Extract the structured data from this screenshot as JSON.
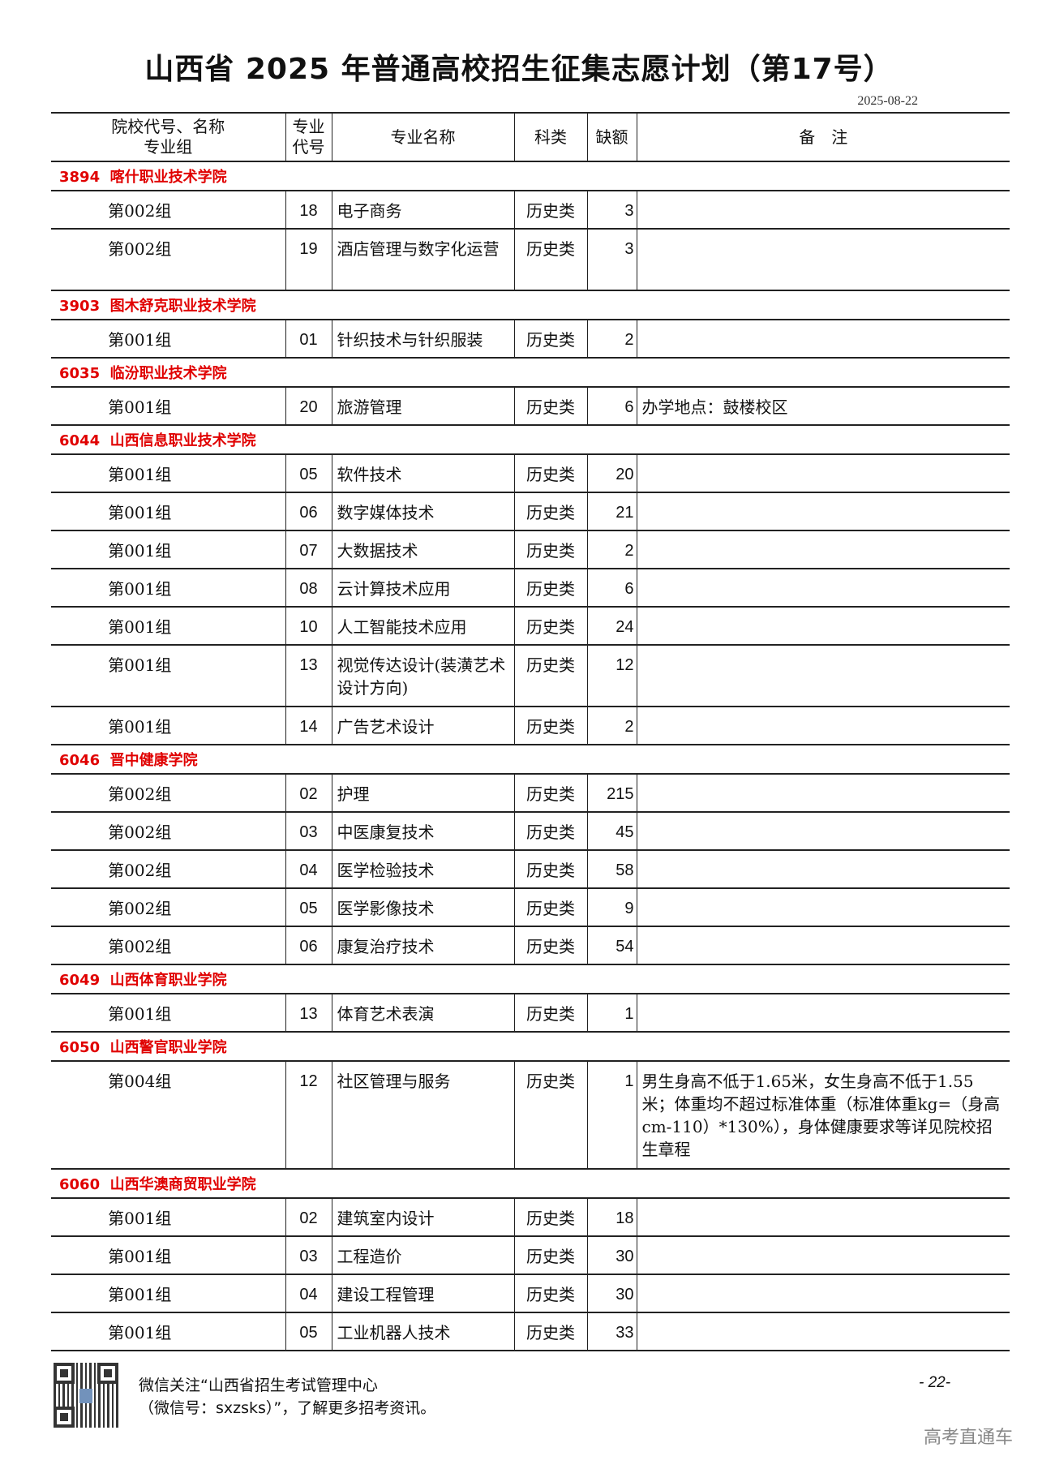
{
  "title": "山西省 2025 年普通高校招生征集志愿计划（第17号）",
  "date": "2025-08-22",
  "headers": {
    "school_line1": "院校代号、名称",
    "school_line2": "专业组",
    "code_line1": "专业",
    "code_line2": "代号",
    "major": "专业名称",
    "category": "科类",
    "quota": "缺额",
    "note": "备　注"
  },
  "schools": [
    {
      "code": "3894",
      "name": "喀什职业技术学院",
      "rows": [
        {
          "group": "第002组",
          "code": "18",
          "major": "电子商务",
          "category": "历史类",
          "quota": "3",
          "note": ""
        },
        {
          "group": "第002组",
          "code": "19",
          "major": "酒店管理与数字化运营",
          "category": "历史类",
          "quota": "3",
          "note": ""
        }
      ]
    },
    {
      "code": "3903",
      "name": "图木舒克职业技术学院",
      "rows": [
        {
          "group": "第001组",
          "code": "01",
          "major": "针织技术与针织服装",
          "category": "历史类",
          "quota": "2",
          "note": ""
        }
      ]
    },
    {
      "code": "6035",
      "name": "临汾职业技术学院",
      "rows": [
        {
          "group": "第001组",
          "code": "20",
          "major": "旅游管理",
          "category": "历史类",
          "quota": "6",
          "note": "办学地点：鼓楼校区"
        }
      ]
    },
    {
      "code": "6044",
      "name": "山西信息职业技术学院",
      "rows": [
        {
          "group": "第001组",
          "code": "05",
          "major": "软件技术",
          "category": "历史类",
          "quota": "20",
          "note": ""
        },
        {
          "group": "第001组",
          "code": "06",
          "major": "数字媒体技术",
          "category": "历史类",
          "quota": "21",
          "note": ""
        },
        {
          "group": "第001组",
          "code": "07",
          "major": "大数据技术",
          "category": "历史类",
          "quota": "2",
          "note": ""
        },
        {
          "group": "第001组",
          "code": "08",
          "major": "云计算技术应用",
          "category": "历史类",
          "quota": "6",
          "note": ""
        },
        {
          "group": "第001组",
          "code": "10",
          "major": "人工智能技术应用",
          "category": "历史类",
          "quota": "24",
          "note": ""
        },
        {
          "group": "第001组",
          "code": "13",
          "major": "视觉传达设计(装潢艺术设计方向)",
          "category": "历史类",
          "quota": "12",
          "note": ""
        },
        {
          "group": "第001组",
          "code": "14",
          "major": "广告艺术设计",
          "category": "历史类",
          "quota": "2",
          "note": ""
        }
      ]
    },
    {
      "code": "6046",
      "name": "晋中健康学院",
      "rows": [
        {
          "group": "第002组",
          "code": "02",
          "major": "护理",
          "category": "历史类",
          "quota": "215",
          "note": ""
        },
        {
          "group": "第002组",
          "code": "03",
          "major": "中医康复技术",
          "category": "历史类",
          "quota": "45",
          "note": ""
        },
        {
          "group": "第002组",
          "code": "04",
          "major": "医学检验技术",
          "category": "历史类",
          "quota": "58",
          "note": ""
        },
        {
          "group": "第002组",
          "code": "05",
          "major": "医学影像技术",
          "category": "历史类",
          "quota": "9",
          "note": ""
        },
        {
          "group": "第002组",
          "code": "06",
          "major": "康复治疗技术",
          "category": "历史类",
          "quota": "54",
          "note": ""
        }
      ]
    },
    {
      "code": "6049",
      "name": "山西体育职业学院",
      "rows": [
        {
          "group": "第001组",
          "code": "13",
          "major": "体育艺术表演",
          "category": "历史类",
          "quota": "1",
          "note": ""
        }
      ]
    },
    {
      "code": "6050",
      "name": "山西警官职业学院",
      "rows": [
        {
          "group": "第004组",
          "code": "12",
          "major": "社区管理与服务",
          "category": "历史类",
          "quota": "1",
          "note": "男生身高不低于1.65米，女生身高不低于1.55米；体重均不超过标准体重（标准体重kg=（身高cm-110）*130%），身体健康要求等详见院校招生章程"
        }
      ]
    },
    {
      "code": "6060",
      "name": "山西华澳商贸职业学院",
      "rows": [
        {
          "group": "第001组",
          "code": "02",
          "major": "建筑室内设计",
          "category": "历史类",
          "quota": "18",
          "note": ""
        },
        {
          "group": "第001组",
          "code": "03",
          "major": "工程造价",
          "category": "历史类",
          "quota": "30",
          "note": ""
        },
        {
          "group": "第001组",
          "code": "04",
          "major": "建设工程管理",
          "category": "历史类",
          "quota": "30",
          "note": ""
        },
        {
          "group": "第001组",
          "code": "05",
          "major": "工业机器人技术",
          "category": "历史类",
          "quota": "33",
          "note": ""
        }
      ]
    }
  ],
  "footer": {
    "line1": "微信关注“山西省招生考试管理中心",
    "line2": "（微信号：sxzsks）”，了解更多招考资讯。",
    "page": "- 22-",
    "watermark": "高考直通车"
  },
  "colors": {
    "school_heading": "#e00000",
    "watermark": "#888888"
  }
}
